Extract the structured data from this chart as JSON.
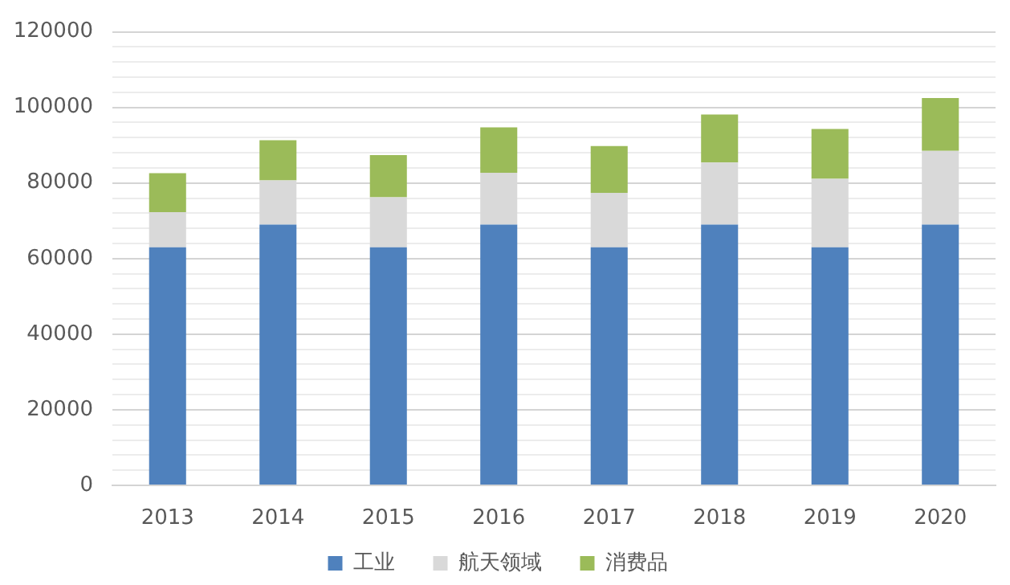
{
  "chart_data": {
    "type": "bar",
    "stacked": true,
    "categories": [
      "2013",
      "2014",
      "2015",
      "2016",
      "2017",
      "2018",
      "2019",
      "2020"
    ],
    "series": [
      {
        "name": "工业",
        "color": "#4f81bd",
        "values": [
          63000,
          69000,
          63000,
          69000,
          63000,
          69000,
          63000,
          69000
        ]
      },
      {
        "name": "航天领域",
        "color": "#d9d9d9",
        "values": [
          9300,
          11700,
          13200,
          13700,
          14400,
          16400,
          18100,
          19500
        ]
      },
      {
        "name": "消费品",
        "color": "#9bbb59",
        "values": [
          10300,
          10600,
          11200,
          12000,
          12400,
          12700,
          13200,
          14000
        ]
      }
    ],
    "ylim": [
      0,
      120000
    ],
    "yticks": [
      0,
      {
        "value": 4000,
        "label": null
      },
      {
        "value": 8000,
        "label": null
      },
      {
        "value": 12000,
        "label": null
      },
      {
        "value": 16000,
        "label": null
      },
      20000,
      {
        "value": 24000,
        "label": null
      },
      {
        "value": 28000,
        "label": null
      },
      {
        "value": 32000,
        "label": null
      },
      {
        "value": 36000,
        "label": null
      },
      40000,
      {
        "value": 44000,
        "label": null
      },
      {
        "value": 48000,
        "label": null
      },
      {
        "value": 52000,
        "label": null
      },
      {
        "value": 56000,
        "label": null
      },
      60000,
      {
        "value": 64000,
        "label": null
      },
      {
        "value": 68000,
        "label": null
      },
      {
        "value": 72000,
        "label": null
      },
      {
        "value": 76000,
        "label": null
      },
      80000,
      {
        "value": 84000,
        "label": null
      },
      {
        "value": 88000,
        "label": null
      },
      {
        "value": 92000,
        "label": null
      },
      {
        "value": 96000,
        "label": null
      },
      100000,
      {
        "value": 104000,
        "label": null
      },
      {
        "value": 108000,
        "label": null
      },
      {
        "value": 112000,
        "label": null
      },
      {
        "value": 116000,
        "label": null
      },
      120000
    ],
    "grid": "y",
    "legend": "bottom"
  }
}
